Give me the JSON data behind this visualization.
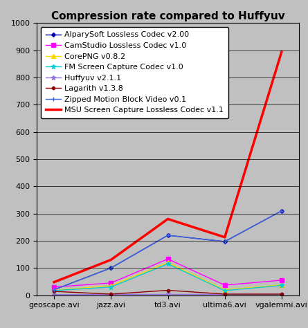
{
  "title": "Compression rate compared to Huffyuv",
  "x_labels": [
    "geoscape.avi",
    "jazz.avi",
    "td3.avi",
    "ultima6.avi",
    "vgalemmi.avi"
  ],
  "series": [
    {
      "label": "AlparySoft Lossless Codec v2.00",
      "color": "#0000AA",
      "marker": "D",
      "markersize": 3,
      "linewidth": 1,
      "linestyle": "-",
      "values": [
        20,
        100,
        220,
        197,
        310
      ]
    },
    {
      "label": "CamStudio Lossless Codec v1.0",
      "color": "#FF00FF",
      "marker": "s",
      "markersize": 4,
      "linewidth": 1,
      "linestyle": "-",
      "values": [
        30,
        45,
        133,
        37,
        55
      ]
    },
    {
      "label": "CorePNG v0.8.2",
      "color": "#FFD700",
      "marker": "^",
      "markersize": 4,
      "linewidth": 1,
      "linestyle": "-",
      "values": [
        18,
        35,
        120,
        20,
        38
      ]
    },
    {
      "label": "FM Screen Capture Codec v1.0",
      "color": "#00CED1",
      "marker": "*",
      "markersize": 5,
      "linewidth": 1,
      "linestyle": "-",
      "values": [
        17,
        30,
        115,
        17,
        36
      ]
    },
    {
      "label": "Huffyuv v2.1.1",
      "color": "#9370DB",
      "marker": "*",
      "markersize": 5,
      "linewidth": 1,
      "linestyle": "-",
      "values": [
        2,
        3,
        3,
        3,
        3
      ]
    },
    {
      "label": "Lagarith v1.3.8",
      "color": "#8B0000",
      "marker": "o",
      "markersize": 3,
      "linewidth": 1,
      "linestyle": "-",
      "values": [
        14,
        4,
        18,
        4,
        4
      ]
    },
    {
      "label": "Zipped Motion Block Video v0.1",
      "color": "#4169E1",
      "marker": "+",
      "markersize": 5,
      "linewidth": 1,
      "linestyle": "-",
      "values": [
        20,
        100,
        220,
        197,
        310
      ]
    },
    {
      "label": "MSU Screen Capture Lossless Codec v1.1",
      "color": "#FF0000",
      "marker": "None",
      "markersize": 0,
      "linewidth": 2.5,
      "linestyle": "-",
      "values": [
        48,
        130,
        280,
        213,
        895
      ]
    }
  ],
  "ylim": [
    0,
    1000
  ],
  "yticks": [
    0,
    100,
    200,
    300,
    400,
    500,
    600,
    700,
    800,
    900,
    1000
  ],
  "background_color": "#C0C0C0",
  "plot_background_color": "#C0C0C0",
  "legend_background": "#FFFFFF",
  "title_fontsize": 11,
  "tick_fontsize": 8,
  "legend_fontsize": 8
}
